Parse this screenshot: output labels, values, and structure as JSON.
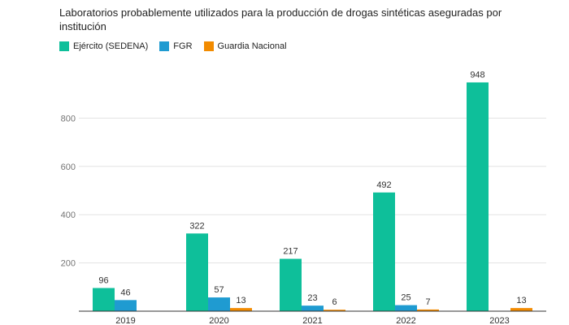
{
  "chart_data": {
    "type": "bar",
    "title": "Laboratorios probablemente utilizados para la producción de drogas sintéticas aseguradas por institución",
    "categories": [
      "2019",
      "2020",
      "2021",
      "2022",
      "2023"
    ],
    "series": [
      {
        "name": "Ejército (SEDENA)",
        "color": "#0ebf9a",
        "values": [
          96,
          322,
          217,
          492,
          948
        ]
      },
      {
        "name": "FGR",
        "color": "#1f9bd1",
        "values": [
          46,
          57,
          23,
          25,
          null
        ]
      },
      {
        "name": "Guardia Nacional",
        "color": "#f28b00",
        "values": [
          null,
          13,
          6,
          7,
          13
        ]
      }
    ],
    "ylim": [
      0,
      1000
    ],
    "yticks": [
      200,
      400,
      600,
      800
    ],
    "xlabel": "",
    "ylabel": "",
    "grid": true,
    "legend_position": "top-left"
  }
}
